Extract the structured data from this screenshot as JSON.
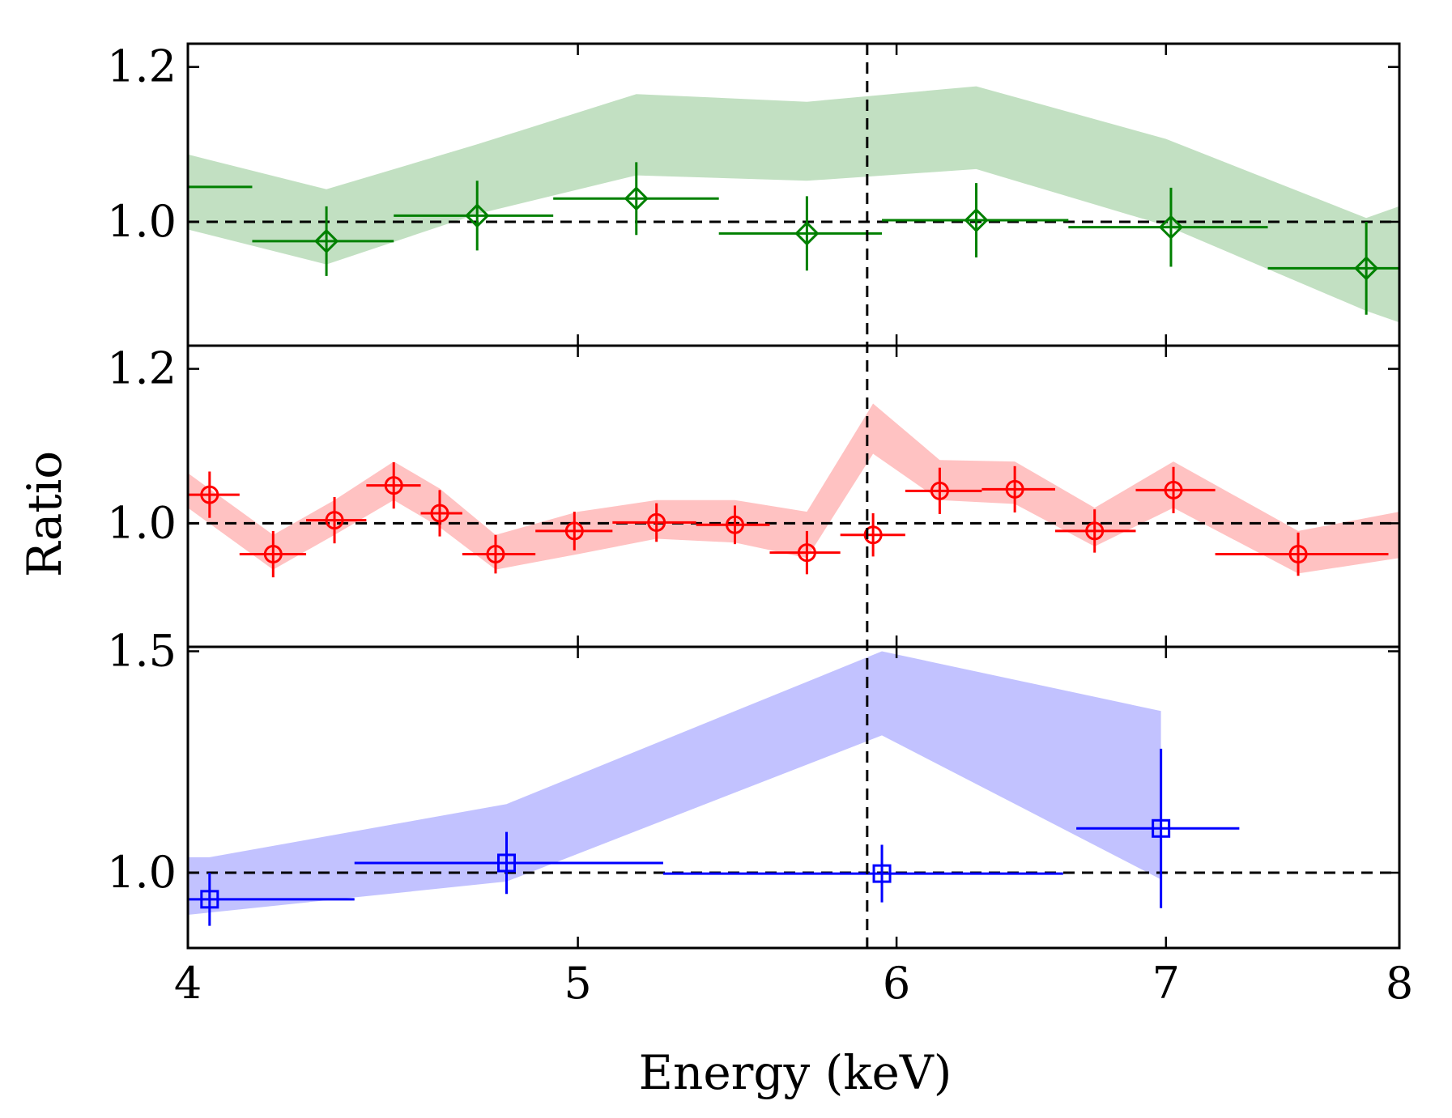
{
  "chart_data": {
    "type": "scatter",
    "xlabel": "Energy (keV)",
    "ylabel": "Ratio",
    "xscale": "log",
    "xlim": [
      4,
      8
    ],
    "xticks": [
      4,
      5,
      6,
      7,
      8
    ],
    "xtick_labels": [
      "4",
      "5",
      "6",
      "7",
      "8"
    ],
    "reference_line_x": 5.9,
    "reference_line_y": 1.0,
    "grid": false,
    "panels": [
      {
        "color": "#008000",
        "band_color": "#c2e0c2",
        "marker": "diamond",
        "ylim": [
          0.84,
          1.23
        ],
        "yticks": [
          1.0,
          1.2
        ],
        "ytick_labels": [
          "1.0",
          "1.2"
        ],
        "band": [
          {
            "x": 4.0,
            "lo": 0.99,
            "hi": 1.087
          },
          {
            "x": 4.33,
            "lo": 0.945,
            "hi": 1.042
          },
          {
            "x": 4.72,
            "lo": 1.01,
            "hi": 1.1
          },
          {
            "x": 5.17,
            "lo": 1.06,
            "hi": 1.165
          },
          {
            "x": 5.7,
            "lo": 1.053,
            "hi": 1.155
          },
          {
            "x": 6.28,
            "lo": 1.068,
            "hi": 1.175
          },
          {
            "x": 7.0,
            "lo": 0.995,
            "hi": 1.107
          },
          {
            "x": 7.85,
            "lo": 0.885,
            "hi": 1.005
          },
          {
            "x": 8.0,
            "lo": 0.87,
            "hi": 1.02
          }
        ],
        "points": [
          {
            "x": 3.9,
            "y": 1.045,
            "xlo": 3.85,
            "xhi": 4.15,
            "yerr": 0.045
          },
          {
            "x": 4.33,
            "y": 0.975,
            "xlo": 4.15,
            "xhi": 4.5,
            "yerr": 0.045
          },
          {
            "x": 4.72,
            "y": 1.008,
            "xlo": 4.5,
            "xhi": 4.93,
            "yerr": 0.045
          },
          {
            "x": 5.17,
            "y": 1.03,
            "xlo": 4.93,
            "xhi": 5.42,
            "yerr": 0.047
          },
          {
            "x": 5.7,
            "y": 0.985,
            "xlo": 5.42,
            "xhi": 5.95,
            "yerr": 0.048
          },
          {
            "x": 6.28,
            "y": 1.002,
            "xlo": 5.95,
            "xhi": 6.62,
            "yerr": 0.048
          },
          {
            "x": 7.02,
            "y": 0.993,
            "xlo": 6.62,
            "xhi": 7.42,
            "yerr": 0.051
          },
          {
            "x": 7.85,
            "y": 0.94,
            "xlo": 7.42,
            "xhi": 8.0,
            "yerr": 0.06
          }
        ]
      },
      {
        "color": "#ff0000",
        "band_color": "#ffc2c2",
        "marker": "circle",
        "ylim": [
          0.84,
          1.23
        ],
        "yticks": [
          1.0,
          1.2
        ],
        "ytick_labels": [
          "1.0",
          "1.2"
        ],
        "band": [
          {
            "x": 4.0,
            "lo": 1.02,
            "hi": 1.065
          },
          {
            "x": 4.2,
            "lo": 0.94,
            "hi": 0.985
          },
          {
            "x": 4.35,
            "lo": 0.985,
            "hi": 1.03
          },
          {
            "x": 4.5,
            "lo": 1.03,
            "hi": 1.08
          },
          {
            "x": 4.62,
            "lo": 0.995,
            "hi": 1.045
          },
          {
            "x": 4.77,
            "lo": 0.94,
            "hi": 0.985
          },
          {
            "x": 5.0,
            "lo": 0.96,
            "hi": 1.015
          },
          {
            "x": 5.23,
            "lo": 0.98,
            "hi": 1.03
          },
          {
            "x": 5.47,
            "lo": 0.975,
            "hi": 1.03
          },
          {
            "x": 5.7,
            "lo": 0.955,
            "hi": 1.015
          },
          {
            "x": 5.92,
            "lo": 1.09,
            "hi": 1.155
          },
          {
            "x": 6.15,
            "lo": 1.03,
            "hi": 1.082
          },
          {
            "x": 6.42,
            "lo": 1.025,
            "hi": 1.08
          },
          {
            "x": 6.72,
            "lo": 0.97,
            "hi": 1.02
          },
          {
            "x": 7.03,
            "lo": 1.02,
            "hi": 1.08
          },
          {
            "x": 7.55,
            "lo": 0.935,
            "hi": 0.99
          },
          {
            "x": 8.0,
            "lo": 0.955,
            "hi": 1.015
          }
        ],
        "points": [
          {
            "x": 4.05,
            "y": 1.037,
            "xlo": 3.98,
            "xhi": 4.12,
            "yerr": 0.03
          },
          {
            "x": 4.2,
            "y": 0.96,
            "xlo": 4.12,
            "xhi": 4.28,
            "yerr": 0.03
          },
          {
            "x": 4.35,
            "y": 1.004,
            "xlo": 4.28,
            "xhi": 4.43,
            "yerr": 0.03
          },
          {
            "x": 4.5,
            "y": 1.049,
            "xlo": 4.43,
            "xhi": 4.57,
            "yerr": 0.03
          },
          {
            "x": 4.62,
            "y": 1.013,
            "xlo": 4.57,
            "xhi": 4.68,
            "yerr": 0.03
          },
          {
            "x": 4.77,
            "y": 0.96,
            "xlo": 4.68,
            "xhi": 4.88,
            "yerr": 0.025
          },
          {
            "x": 4.99,
            "y": 0.99,
            "xlo": 4.88,
            "xhi": 5.1,
            "yerr": 0.025
          },
          {
            "x": 5.23,
            "y": 1.001,
            "xlo": 5.1,
            "xhi": 5.35,
            "yerr": 0.025
          },
          {
            "x": 5.47,
            "y": 0.998,
            "xlo": 5.35,
            "xhi": 5.58,
            "yerr": 0.025
          },
          {
            "x": 5.7,
            "y": 0.962,
            "xlo": 5.58,
            "xhi": 5.81,
            "yerr": 0.028
          },
          {
            "x": 5.92,
            "y": 0.985,
            "xlo": 5.81,
            "xhi": 6.03,
            "yerr": 0.028
          },
          {
            "x": 6.15,
            "y": 1.042,
            "xlo": 6.03,
            "xhi": 6.3,
            "yerr": 0.03
          },
          {
            "x": 6.42,
            "y": 1.044,
            "xlo": 6.3,
            "xhi": 6.57,
            "yerr": 0.03
          },
          {
            "x": 6.72,
            "y": 0.99,
            "xlo": 6.57,
            "xhi": 6.88,
            "yerr": 0.028
          },
          {
            "x": 7.03,
            "y": 1.043,
            "xlo": 6.88,
            "xhi": 7.2,
            "yerr": 0.03
          },
          {
            "x": 7.55,
            "y": 0.96,
            "xlo": 7.2,
            "xhi": 7.95,
            "yerr": 0.028
          }
        ]
      },
      {
        "color": "#0000ff",
        "band_color": "#c2c2ff",
        "marker": "square",
        "ylim": [
          0.83,
          1.51
        ],
        "yticks": [
          1.0,
          1.5
        ],
        "ytick_labels": [
          "1.0",
          "1.5"
        ],
        "band": [
          {
            "x": 4.0,
            "lo": 0.905,
            "hi": 1.035
          },
          {
            "x": 4.05,
            "lo": 0.91,
            "hi": 1.035
          },
          {
            "x": 4.8,
            "lo": 0.98,
            "hi": 1.155
          },
          {
            "x": 5.95,
            "lo": 1.31,
            "hi": 1.5
          },
          {
            "x": 6.98,
            "lo": 0.985,
            "hi": 1.365
          }
        ],
        "points": [
          {
            "x": 4.05,
            "y": 0.94,
            "xlo": 4.0,
            "xhi": 4.4,
            "yerr": 0.06
          },
          {
            "x": 4.8,
            "y": 1.022,
            "xlo": 4.4,
            "xhi": 5.25,
            "yerr": 0.07
          },
          {
            "x": 5.95,
            "y": 0.998,
            "xlo": 5.25,
            "xhi": 6.6,
            "yerr": 0.065
          },
          {
            "x": 6.98,
            "y": 1.1,
            "xlo": 6.65,
            "xhi": 7.3,
            "yerr": 0.18
          }
        ]
      }
    ]
  }
}
